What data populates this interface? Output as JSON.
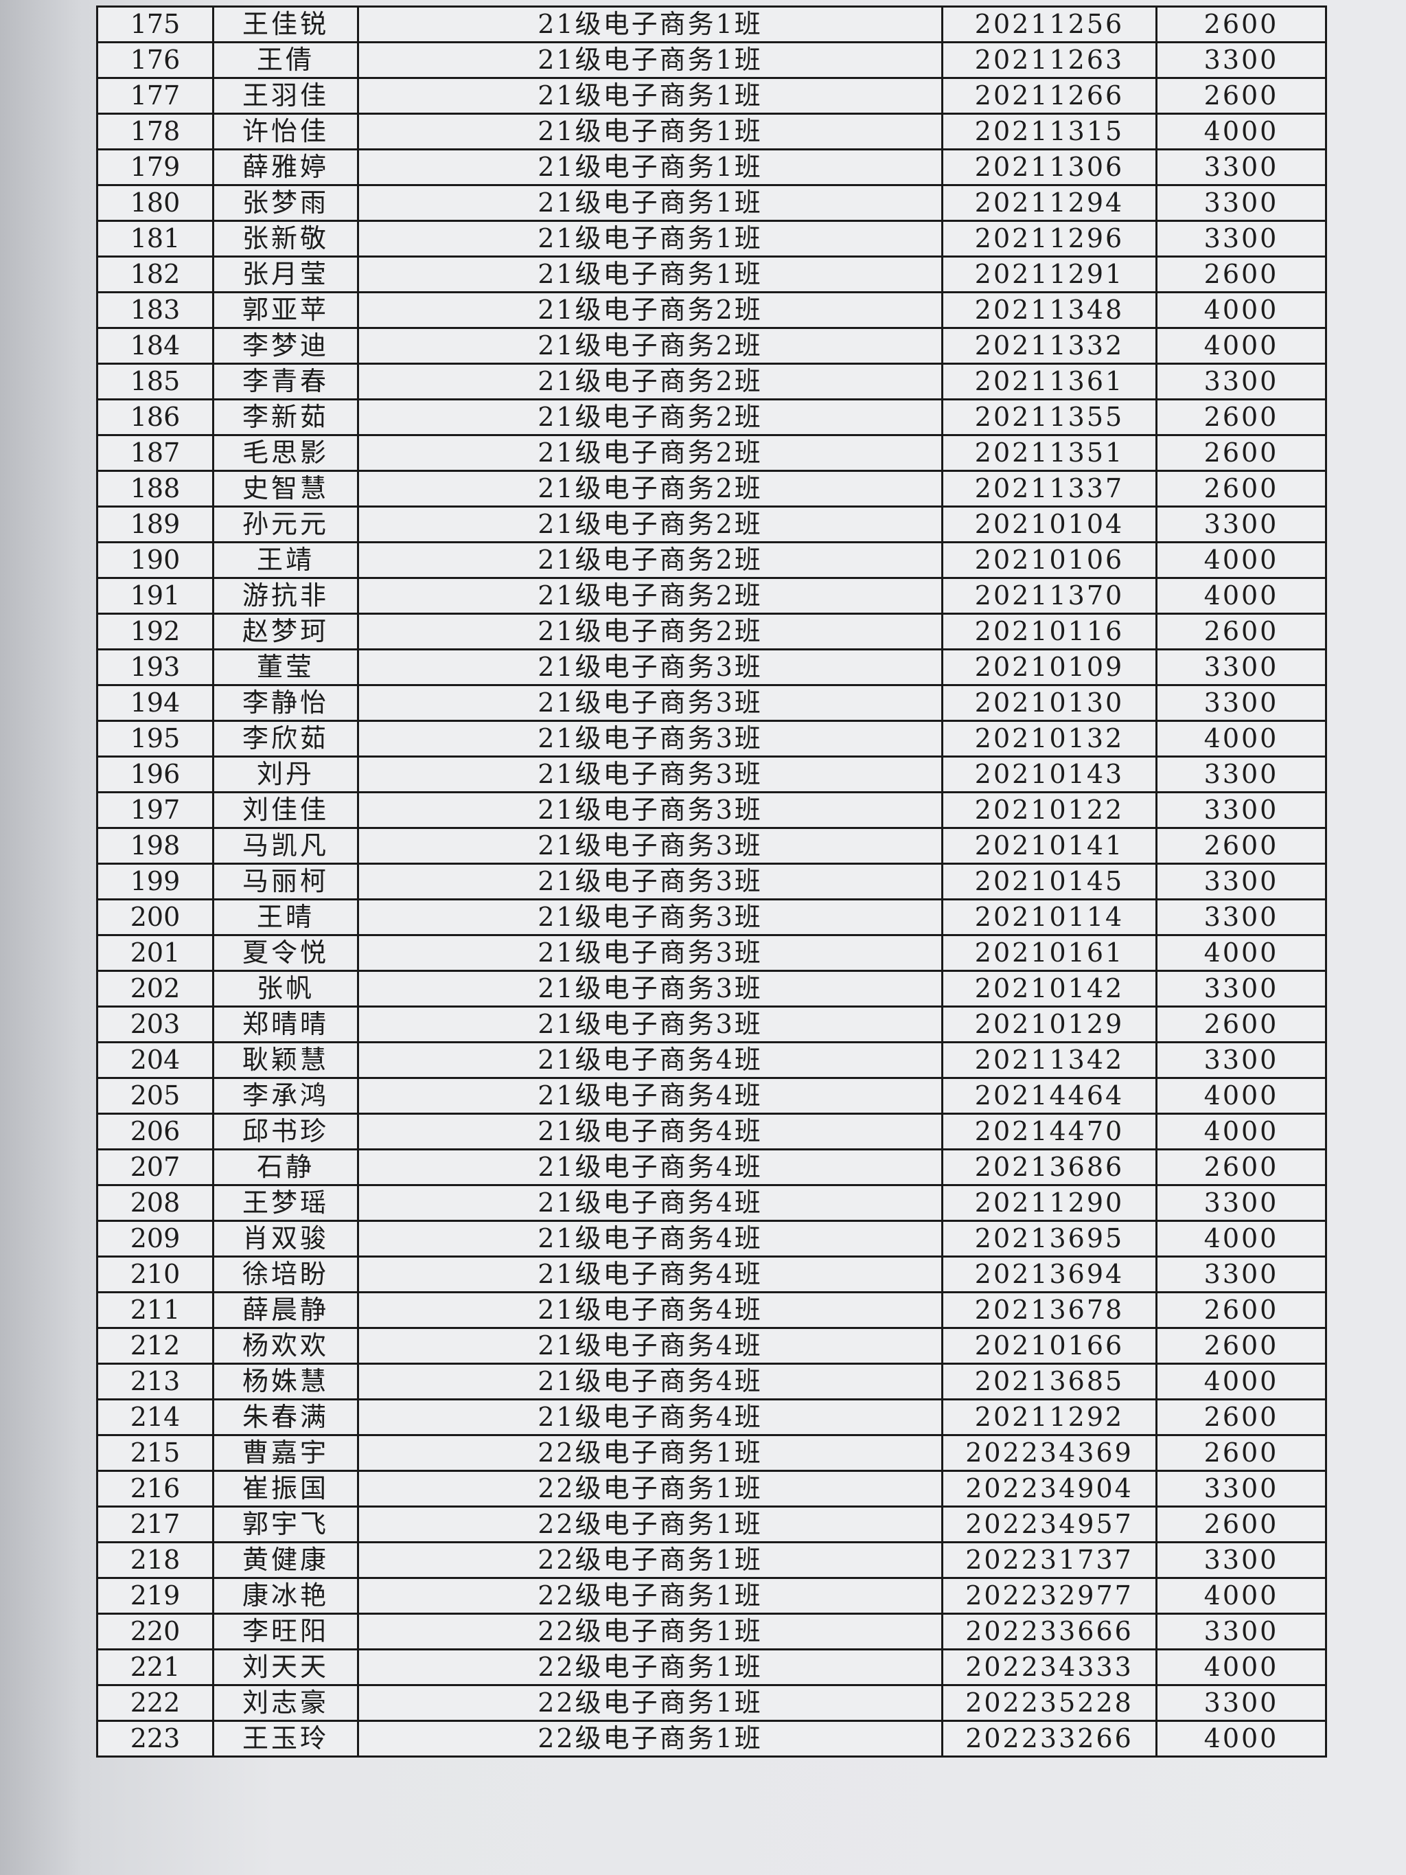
{
  "table": {
    "rows": [
      [
        175,
        "王佳锐",
        "21级电子商务1班",
        20211256,
        2600
      ],
      [
        176,
        "王倩",
        "21级电子商务1班",
        20211263,
        3300
      ],
      [
        177,
        "王羽佳",
        "21级电子商务1班",
        20211266,
        2600
      ],
      [
        178,
        "许怡佳",
        "21级电子商务1班",
        20211315,
        4000
      ],
      [
        179,
        "薛雅婷",
        "21级电子商务1班",
        20211306,
        3300
      ],
      [
        180,
        "张梦雨",
        "21级电子商务1班",
        20211294,
        3300
      ],
      [
        181,
        "张新敬",
        "21级电子商务1班",
        20211296,
        3300
      ],
      [
        182,
        "张月莹",
        "21级电子商务1班",
        20211291,
        2600
      ],
      [
        183,
        "郭亚苹",
        "21级电子商务2班",
        20211348,
        4000
      ],
      [
        184,
        "李梦迪",
        "21级电子商务2班",
        20211332,
        4000
      ],
      [
        185,
        "李青春",
        "21级电子商务2班",
        20211361,
        3300
      ],
      [
        186,
        "李新茹",
        "21级电子商务2班",
        20211355,
        2600
      ],
      [
        187,
        "毛思影",
        "21级电子商务2班",
        20211351,
        2600
      ],
      [
        188,
        "史智慧",
        "21级电子商务2班",
        20211337,
        2600
      ],
      [
        189,
        "孙元元",
        "21级电子商务2班",
        20210104,
        3300
      ],
      [
        190,
        "王靖",
        "21级电子商务2班",
        20210106,
        4000
      ],
      [
        191,
        "游抗非",
        "21级电子商务2班",
        20211370,
        4000
      ],
      [
        192,
        "赵梦珂",
        "21级电子商务2班",
        20210116,
        2600
      ],
      [
        193,
        "董莹",
        "21级电子商务3班",
        20210109,
        3300
      ],
      [
        194,
        "李静怡",
        "21级电子商务3班",
        20210130,
        3300
      ],
      [
        195,
        "李欣茹",
        "21级电子商务3班",
        20210132,
        4000
      ],
      [
        196,
        "刘丹",
        "21级电子商务3班",
        20210143,
        3300
      ],
      [
        197,
        "刘佳佳",
        "21级电子商务3班",
        20210122,
        3300
      ],
      [
        198,
        "马凯凡",
        "21级电子商务3班",
        20210141,
        2600
      ],
      [
        199,
        "马丽柯",
        "21级电子商务3班",
        20210145,
        3300
      ],
      [
        200,
        "王晴",
        "21级电子商务3班",
        20210114,
        3300
      ],
      [
        201,
        "夏令悦",
        "21级电子商务3班",
        20210161,
        4000
      ],
      [
        202,
        "张帆",
        "21级电子商务3班",
        20210142,
        3300
      ],
      [
        203,
        "郑晴晴",
        "21级电子商务3班",
        20210129,
        2600
      ],
      [
        204,
        "耿颖慧",
        "21级电子商务4班",
        20211342,
        3300
      ],
      [
        205,
        "李承鸿",
        "21级电子商务4班",
        20214464,
        4000
      ],
      [
        206,
        "邱书珍",
        "21级电子商务4班",
        20214470,
        4000
      ],
      [
        207,
        "石静",
        "21级电子商务4班",
        20213686,
        2600
      ],
      [
        208,
        "王梦瑶",
        "21级电子商务4班",
        20211290,
        3300
      ],
      [
        209,
        "肖双骏",
        "21级电子商务4班",
        20213695,
        4000
      ],
      [
        210,
        "徐培盼",
        "21级电子商务4班",
        20213694,
        3300
      ],
      [
        211,
        "薛晨静",
        "21级电子商务4班",
        20213678,
        2600
      ],
      [
        212,
        "杨欢欢",
        "21级电子商务4班",
        20210166,
        2600
      ],
      [
        213,
        "杨姝慧",
        "21级电子商务4班",
        20213685,
        4000
      ],
      [
        214,
        "朱春满",
        "21级电子商务4班",
        20211292,
        2600
      ],
      [
        215,
        "曹嘉宇",
        "22级电子商务1班",
        202234369,
        2600
      ],
      [
        216,
        "崔振国",
        "22级电子商务1班",
        202234904,
        3300
      ],
      [
        217,
        "郭宇飞",
        "22级电子商务1班",
        202234957,
        2600
      ],
      [
        218,
        "黄健康",
        "22级电子商务1班",
        202231737,
        3300
      ],
      [
        219,
        "康冰艳",
        "22级电子商务1班",
        202232977,
        4000
      ],
      [
        220,
        "李旺阳",
        "22级电子商务1班",
        202233666,
        3300
      ],
      [
        221,
        "刘天天",
        "22级电子商务1班",
        202234333,
        4000
      ],
      [
        222,
        "刘志豪",
        "22级电子商务1班",
        202235228,
        3300
      ],
      [
        223,
        "王玉玲",
        "22级电子商务1班",
        202233266,
        4000
      ]
    ]
  }
}
